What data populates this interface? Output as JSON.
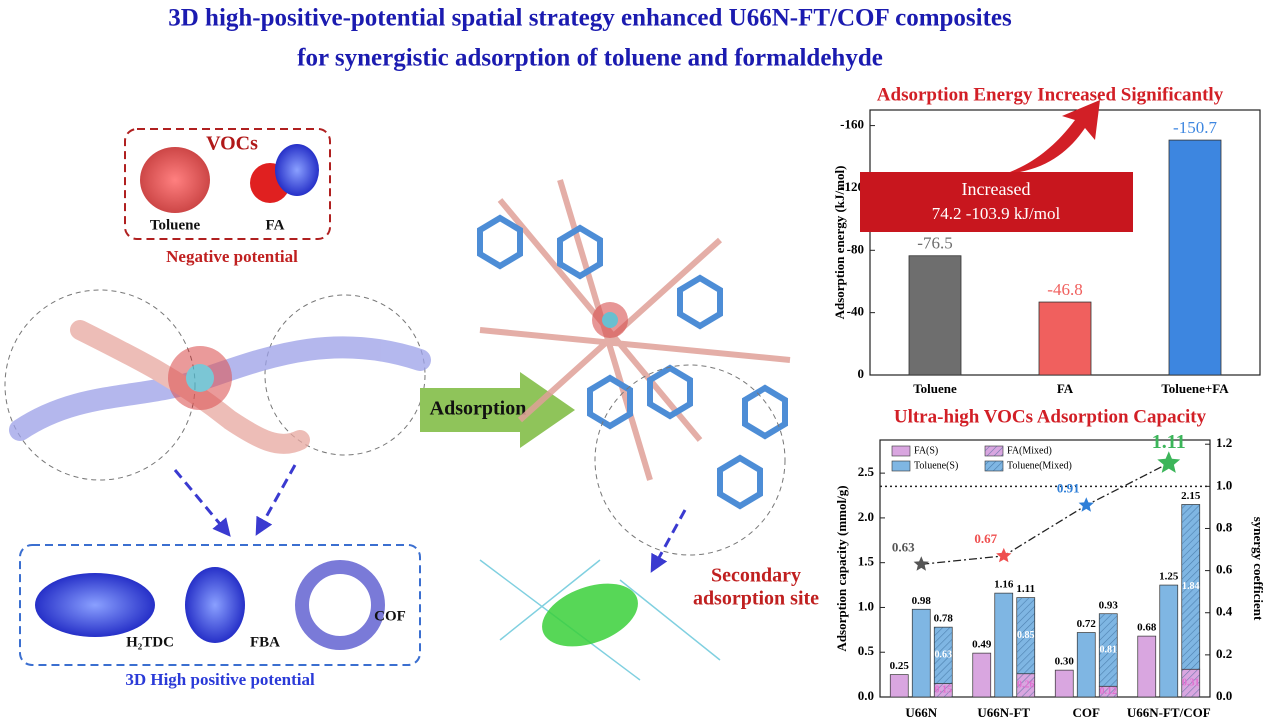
{
  "header": {
    "title_line1": "3D high-positive-potential spatial strategy enhanced U66N-FT/COF composites",
    "title_line2": "for synergistic adsorption of toluene and formaldehyde"
  },
  "vocs_panel": {
    "title": "VOCs",
    "labels": [
      "Toluene",
      "FA"
    ],
    "caption": "Negative potential"
  },
  "linker_panel": {
    "labels": [
      "H₂TDC",
      "FBA",
      "COF"
    ],
    "caption": "3D High positive potential"
  },
  "center": {
    "arrow_label": "Adsorption",
    "site_label": [
      "Secondary",
      "adsorption site"
    ]
  },
  "chart_data": [
    {
      "type": "bar",
      "title": "Adsorption Energy Increased Significantly",
      "y_label": "Adsorption energy (kJ/mol)",
      "categories": [
        "Toluene",
        "FA",
        "Toluene+FA"
      ],
      "values": [
        -76.5,
        -46.8,
        -150.7
      ],
      "colors": [
        "#6e6e6e",
        "#f0605e",
        "#3d86e0"
      ],
      "ylim": [
        0,
        -170
      ],
      "yticks": [
        0,
        -40,
        -80,
        -120,
        -160
      ],
      "annotation": [
        "Increased",
        "74.2 -103.9 kJ/mol"
      ]
    },
    {
      "type": "combo",
      "title": "Ultra-high VOCs Adsorption Capacity",
      "y_label": "Adsorption capacity (mmol/g)",
      "y2_label": "synergy coefficient",
      "categories": [
        "U66N",
        "U66N-FT",
        "COF",
        "U66N-FT/COF"
      ],
      "series": [
        {
          "name": "FA(S)",
          "color": "#d9a6e0",
          "values": [
            0.25,
            0.49,
            0.3,
            0.68
          ],
          "value_labels": [
            "0.25",
            "0.49",
            "0.30",
            "0.68"
          ]
        },
        {
          "name": "Toluene(S)",
          "color": "#7fb6e3",
          "values": [
            0.98,
            1.16,
            0.72,
            1.25
          ]
        },
        {
          "name": "FA(Mixed)",
          "color": "#d9a6e0",
          "hatch": true,
          "stack": "mixed",
          "values": [
            0.15,
            0.26,
            0.12,
            0.31
          ]
        },
        {
          "name": "Toluene(Mixed)",
          "color": "#7fb6e3",
          "hatch": true,
          "stack": "mixed",
          "values": [
            0.63,
            0.85,
            0.81,
            1.84
          ]
        }
      ],
      "stack_totals": [
        0.78,
        1.11,
        0.93,
        2.15
      ],
      "line": {
        "axis": "y2",
        "values": [
          0.63,
          0.67,
          0.91,
          1.11
        ],
        "colors": [
          "#555555",
          "#ef4f4f",
          "#2f7fd8",
          "#3cb55a"
        ]
      },
      "reference_line": {
        "axis": "y2",
        "value": 1
      },
      "ylim": [
        0,
        2.87
      ],
      "yticks": [
        {
          "value": 0,
          "label": "0.0"
        },
        0.5,
        {
          "value": 1,
          "label": "1.0"
        },
        1.5,
        {
          "value": 2,
          "label": "2.0"
        },
        2.5
      ],
      "y2lim": [
        0,
        1.22
      ],
      "y2ticks": [
        {
          "value": 0,
          "label": "0.0"
        },
        0.2,
        0.4,
        0.6,
        0.8,
        {
          "value": 1,
          "label": "1.0"
        },
        1.2
      ]
    }
  ]
}
